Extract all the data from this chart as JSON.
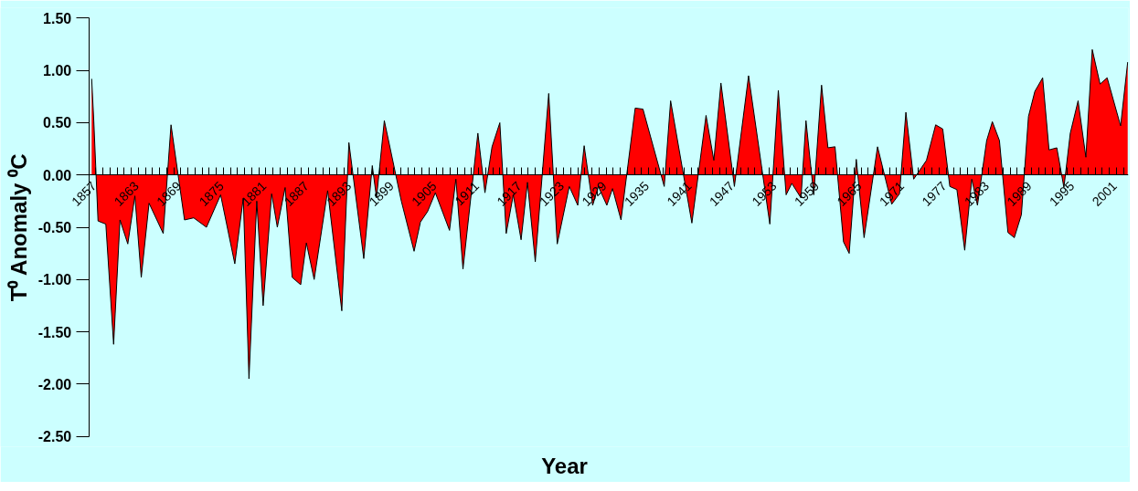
{
  "chart_data": {
    "type": "area",
    "xlabel": "Year",
    "ylabel": "T⁰ Anomaly ⁰C",
    "color": "#ff0000",
    "x": [
      1857.4,
      1857.7,
      1858.3,
      1859.4,
      1860.5,
      1861.4,
      1862.5,
      1863.5,
      1864.4,
      1865.5,
      1867.5,
      1868.6,
      1870.5,
      1871.8,
      1873.6,
      1875.6,
      1877.6,
      1878.8,
      1879.6,
      1880.7,
      1881.6,
      1882.8,
      1883.6,
      1884.7,
      1885.7,
      1886.9,
      1887.7,
      1888.8,
      1890.7,
      1892.7,
      1893.7,
      1895.8,
      1897.0,
      1897.6,
      1898.7,
      1901.1,
      1902.9,
      1903.8,
      1904.8,
      1905.9,
      1907.9,
      1908.8,
      1909.8,
      1911.9,
      1912.9,
      1913.9,
      1915.0,
      1915.9,
      1916.9,
      1918.0,
      1918.9,
      1920.0,
      1921.9,
      1923.1,
      1924.8,
      1926.0,
      1926.9,
      1928.1,
      1928.9,
      1930.1,
      1930.9,
      1932.1,
      1934.1,
      1935.2,
      1938.2,
      1939.1,
      1942.1,
      1944.1,
      1945.2,
      1946.2,
      1948.1,
      1950.1,
      1953.1,
      1954.3,
      1955.4,
      1956.2,
      1957.5,
      1958.2,
      1959.3,
      1960.4,
      1961.3,
      1962.3,
      1963.5,
      1964.3,
      1965.3,
      1966.4,
      1968.3,
      1970.3,
      1971.4,
      1972.3,
      1973.4,
      1975.2,
      1976.5,
      1977.5,
      1978.5,
      1979.5,
      1980.6,
      1981.6,
      1982.4,
      1983.7,
      1984.5,
      1985.5,
      1986.7,
      1987.6,
      1988.6,
      1989.6,
      1990.5,
      1991.6,
      1992.5,
      1993.6,
      1994.6,
      1995.5,
      1996.6,
      1997.7,
      1998.6,
      1999.7,
      2000.7,
      2002.6,
      2003.6
    ],
    "values": [
      0.92,
      0.52,
      -0.44,
      -0.47,
      -1.62,
      -0.43,
      -0.66,
      -0.2,
      -0.98,
      -0.27,
      -0.56,
      0.48,
      -0.43,
      -0.41,
      -0.5,
      -0.19,
      -0.85,
      -0.22,
      -1.95,
      -0.25,
      -1.25,
      -0.18,
      -0.5,
      -0.12,
      -0.98,
      -1.05,
      -0.65,
      -1.0,
      -0.15,
      -1.3,
      0.31,
      -0.8,
      0.09,
      -0.22,
      0.52,
      -0.25,
      -0.73,
      -0.45,
      -0.35,
      -0.17,
      -0.53,
      -0.04,
      -0.9,
      0.4,
      -0.17,
      0.27,
      0.5,
      -0.56,
      -0.19,
      -0.62,
      -0.07,
      -0.83,
      0.78,
      -0.66,
      -0.11,
      -0.29,
      0.28,
      -0.29,
      -0.11,
      -0.29,
      -0.13,
      -0.43,
      0.64,
      0.63,
      -0.11,
      0.71,
      -0.46,
      0.57,
      0.14,
      0.88,
      -0.11,
      0.95,
      -0.47,
      0.81,
      -0.19,
      -0.08,
      -0.22,
      0.52,
      -0.19,
      0.86,
      0.26,
      0.27,
      -0.64,
      -0.75,
      0.15,
      -0.6,
      0.27,
      -0.28,
      -0.18,
      0.6,
      -0.04,
      0.14,
      0.48,
      0.44,
      -0.11,
      -0.14,
      -0.72,
      -0.04,
      -0.29,
      0.33,
      0.51,
      0.33,
      -0.55,
      -0.6,
      -0.38,
      0.56,
      0.8,
      0.93,
      0.24,
      0.26,
      -0.12,
      0.4,
      0.71,
      0.17,
      1.2,
      0.87,
      0.93,
      0.47,
      1.08
    ],
    "xlim": [
      1857,
      2003.7
    ],
    "ylim": [
      -2.5,
      1.5
    ],
    "xticks": [
      1857,
      {
        "value": 1858,
        "label": null
      },
      {
        "value": 1859,
        "label": null
      },
      {
        "value": 1860,
        "label": null
      },
      {
        "value": 1861,
        "label": null
      },
      {
        "value": 1862,
        "label": null
      },
      1863,
      {
        "value": 1864,
        "label": null
      },
      {
        "value": 1865,
        "label": null
      },
      {
        "value": 1866,
        "label": null
      },
      {
        "value": 1867,
        "label": null
      },
      {
        "value": 1868,
        "label": null
      },
      1869,
      {
        "value": 1870,
        "label": null
      },
      {
        "value": 1871,
        "label": null
      },
      {
        "value": 1872,
        "label": null
      },
      {
        "value": 1873,
        "label": null
      },
      {
        "value": 1874,
        "label": null
      },
      1875,
      {
        "value": 1876,
        "label": null
      },
      {
        "value": 1877,
        "label": null
      },
      {
        "value": 1878,
        "label": null
      },
      {
        "value": 1879,
        "label": null
      },
      {
        "value": 1880,
        "label": null
      },
      1881,
      {
        "value": 1882,
        "label": null
      },
      {
        "value": 1883,
        "label": null
      },
      {
        "value": 1884,
        "label": null
      },
      {
        "value": 1885,
        "label": null
      },
      {
        "value": 1886,
        "label": null
      },
      1887,
      {
        "value": 1888,
        "label": null
      },
      {
        "value": 1889,
        "label": null
      },
      {
        "value": 1890,
        "label": null
      },
      {
        "value": 1891,
        "label": null
      },
      {
        "value": 1892,
        "label": null
      },
      1893,
      {
        "value": 1894,
        "label": null
      },
      {
        "value": 1895,
        "label": null
      },
      {
        "value": 1896,
        "label": null
      },
      {
        "value": 1897,
        "label": null
      },
      {
        "value": 1898,
        "label": null
      },
      1899,
      {
        "value": 1900,
        "label": null
      },
      {
        "value": 1901,
        "label": null
      },
      {
        "value": 1902,
        "label": null
      },
      {
        "value": 1903,
        "label": null
      },
      {
        "value": 1904,
        "label": null
      },
      1905,
      {
        "value": 1906,
        "label": null
      },
      {
        "value": 1907,
        "label": null
      },
      {
        "value": 1908,
        "label": null
      },
      {
        "value": 1909,
        "label": null
      },
      {
        "value": 1910,
        "label": null
      },
      1911,
      {
        "value": 1912,
        "label": null
      },
      {
        "value": 1913,
        "label": null
      },
      {
        "value": 1914,
        "label": null
      },
      {
        "value": 1915,
        "label": null
      },
      {
        "value": 1916,
        "label": null
      },
      1917,
      {
        "value": 1918,
        "label": null
      },
      {
        "value": 1919,
        "label": null
      },
      {
        "value": 1920,
        "label": null
      },
      {
        "value": 1921,
        "label": null
      },
      {
        "value": 1922,
        "label": null
      },
      1923,
      {
        "value": 1924,
        "label": null
      },
      {
        "value": 1925,
        "label": null
      },
      {
        "value": 1926,
        "label": null
      },
      {
        "value": 1927,
        "label": null
      },
      {
        "value": 1928,
        "label": null
      },
      1929,
      {
        "value": 1930,
        "label": null
      },
      {
        "value": 1931,
        "label": null
      },
      {
        "value": 1932,
        "label": null
      },
      {
        "value": 1933,
        "label": null
      },
      {
        "value": 1934,
        "label": null
      },
      1935,
      {
        "value": 1936,
        "label": null
      },
      {
        "value": 1937,
        "label": null
      },
      {
        "value": 1938,
        "label": null
      },
      {
        "value": 1939,
        "label": null
      },
      {
        "value": 1940,
        "label": null
      },
      1941,
      {
        "value": 1942,
        "label": null
      },
      {
        "value": 1943,
        "label": null
      },
      {
        "value": 1944,
        "label": null
      },
      {
        "value": 1945,
        "label": null
      },
      {
        "value": 1946,
        "label": null
      },
      1947,
      {
        "value": 1948,
        "label": null
      },
      {
        "value": 1949,
        "label": null
      },
      {
        "value": 1950,
        "label": null
      },
      {
        "value": 1951,
        "label": null
      },
      {
        "value": 1952,
        "label": null
      },
      1953,
      {
        "value": 1954,
        "label": null
      },
      {
        "value": 1955,
        "label": null
      },
      {
        "value": 1956,
        "label": null
      },
      {
        "value": 1957,
        "label": null
      },
      {
        "value": 1958,
        "label": null
      },
      1959,
      {
        "value": 1960,
        "label": null
      },
      {
        "value": 1961,
        "label": null
      },
      {
        "value": 1962,
        "label": null
      },
      {
        "value": 1963,
        "label": null
      },
      {
        "value": 1964,
        "label": null
      },
      1965,
      {
        "value": 1966,
        "label": null
      },
      {
        "value": 1967,
        "label": null
      },
      {
        "value": 1968,
        "label": null
      },
      {
        "value": 1969,
        "label": null
      },
      {
        "value": 1970,
        "label": null
      },
      1971,
      {
        "value": 1972,
        "label": null
      },
      {
        "value": 1973,
        "label": null
      },
      {
        "value": 1974,
        "label": null
      },
      {
        "value": 1975,
        "label": null
      },
      {
        "value": 1976,
        "label": null
      },
      1977,
      {
        "value": 1978,
        "label": null
      },
      {
        "value": 1979,
        "label": null
      },
      {
        "value": 1980,
        "label": null
      },
      {
        "value": 1981,
        "label": null
      },
      {
        "value": 1982,
        "label": null
      },
      1983,
      {
        "value": 1984,
        "label": null
      },
      {
        "value": 1985,
        "label": null
      },
      {
        "value": 1986,
        "label": null
      },
      {
        "value": 1987,
        "label": null
      },
      {
        "value": 1988,
        "label": null
      },
      1989,
      {
        "value": 1990,
        "label": null
      },
      {
        "value": 1991,
        "label": null
      },
      {
        "value": 1992,
        "label": null
      },
      {
        "value": 1993,
        "label": null
      },
      {
        "value": 1994,
        "label": null
      },
      1995,
      {
        "value": 1996,
        "label": null
      },
      {
        "value": 1997,
        "label": null
      },
      {
        "value": 1998,
        "label": null
      },
      {
        "value": 1999,
        "label": null
      },
      {
        "value": 2000,
        "label": null
      },
      2001,
      {
        "value": 2002,
        "label": null
      },
      {
        "value": 2003,
        "label": null
      }
    ],
    "yticks": [
      {
        "value": -2.5,
        "label": "-2.50"
      },
      {
        "value": -2.0,
        "label": "-2.00"
      },
      {
        "value": -1.5,
        "label": "-1.50"
      },
      {
        "value": -1.0,
        "label": "-1.00"
      },
      {
        "value": -0.5,
        "label": "-0.50"
      },
      {
        "value": 0,
        "label": "0.00"
      },
      {
        "value": 0.5,
        "label": "0.50"
      },
      {
        "value": 1.0,
        "label": "1.00"
      },
      {
        "value": 1.5,
        "label": "1.50"
      }
    ]
  }
}
